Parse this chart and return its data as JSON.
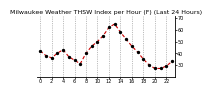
{
  "title": "Milwaukee Weather THSW Index per Hour (F) (Last 24 Hours)",
  "hours": [
    0,
    1,
    2,
    3,
    4,
    5,
    6,
    7,
    8,
    9,
    10,
    11,
    12,
    13,
    14,
    15,
    16,
    17,
    18,
    19,
    20,
    21,
    22,
    23
  ],
  "values": [
    42,
    38,
    36,
    40,
    43,
    37,
    34,
    31,
    40,
    46,
    50,
    55,
    62,
    65,
    58,
    52,
    46,
    41,
    35,
    30,
    27,
    27,
    29,
    33
  ],
  "ylim": [
    20,
    72
  ],
  "yticks": [
    30,
    40,
    50,
    60,
    70
  ],
  "line_color": "#cc0000",
  "marker_color": "#000000",
  "bg_color": "#ffffff",
  "grid_color": "#888888",
  "title_fontsize": 4.5,
  "tick_fontsize": 3.5
}
